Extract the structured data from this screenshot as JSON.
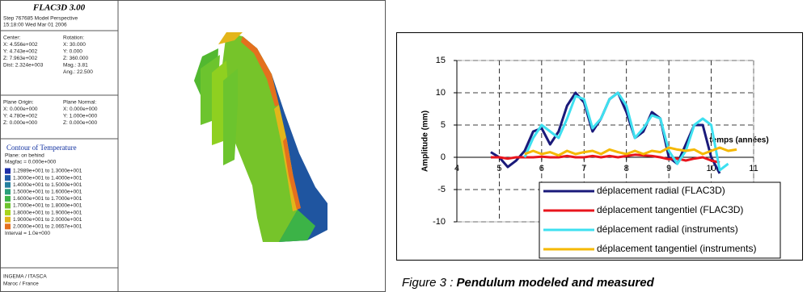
{
  "panel": {
    "title": "FLAC3D 3.00",
    "header": [
      "Step 767685  Model Perspective",
      "15:18:00 Wed Mar 01 2006"
    ],
    "center": [
      "Center:",
      "X: 4.556e+002",
      "Y: 4.743e+002",
      "Z: 7.963e+002",
      "Dist: 2.324e+003"
    ],
    "rotation": [
      "Rotation:",
      "X:  30.000",
      "Y:   0.000",
      "Z: 360.000",
      "Mag.:   3.81",
      "Ang.:  22.500"
    ],
    "plane_origin": [
      "Plane Origin:",
      "X: 0.000e+000",
      "Y: 4.780e+002",
      "Z: 0.000e+000"
    ],
    "plane_normal": [
      "Plane Normal:",
      "X: 0.000e+000",
      "Y: 1.000e+000",
      "Z: 0.000e+000"
    ],
    "contour_title": "Contour of Temperature",
    "contour_info": [
      "Plane: on behind",
      "Magfac =  0.000e+000"
    ],
    "contour_legend": [
      {
        "label": "1.2989e+001 to 1.3000e+001",
        "color": "#1f2fa8"
      },
      {
        "label": "1.3000e+001 to 1.4000e+001",
        "color": "#1f5aa8"
      },
      {
        "label": "1.4000e+001 to 1.5000e+001",
        "color": "#25809f"
      },
      {
        "label": "1.5000e+001 to 1.6000e+001",
        "color": "#2a9f7a"
      },
      {
        "label": "1.6000e+001 to 1.7000e+001",
        "color": "#3cb347"
      },
      {
        "label": "1.7000e+001 to 1.8000e+001",
        "color": "#6cc42e"
      },
      {
        "label": "1.8000e+001 to 1.9000e+001",
        "color": "#a8d41c"
      },
      {
        "label": "1.9000e+001 to 2.0000e+001",
        "color": "#e3b51a"
      },
      {
        "label": "2.0000e+001 to 2.0657e+001",
        "color": "#e4701e"
      }
    ],
    "interval": "Interval =  1.0e+000",
    "footer": [
      "INGEMA / ITASCA",
      "Maroc / France"
    ]
  },
  "chart_data": {
    "type": "line",
    "y_label": "Amplitude (mm)",
    "x_label": "temps (années)",
    "x": [
      4.6,
      4.8,
      5.0,
      5.2,
      5.4,
      5.6,
      5.8,
      6.0,
      6.2,
      6.4,
      6.6,
      6.8,
      7.0,
      7.2,
      7.4,
      7.6,
      7.8,
      8.0,
      8.2,
      8.4,
      8.6,
      8.8,
      9.0,
      9.2,
      9.4,
      9.6,
      9.8,
      10.0,
      10.2,
      10.4,
      10.6
    ],
    "series": [
      {
        "name": "déplacement radial (FLAC3D)",
        "color": "#1a1a7a",
        "values": [
          null,
          0.8,
          0,
          -1.5,
          -0.5,
          1,
          4,
          4.5,
          2,
          4,
          8,
          10,
          8.5,
          4,
          6,
          9,
          10,
          7,
          3,
          4,
          7,
          6,
          0,
          -1,
          2,
          5,
          5,
          0,
          -2.5,
          null,
          null
        ]
      },
      {
        "name": "déplacement tangentiel (FLAC3D)",
        "color": "#e8141c",
        "values": [
          null,
          0,
          0,
          -0.2,
          0,
          0,
          0,
          0.1,
          0,
          0,
          0.2,
          0,
          0,
          0.2,
          0,
          0.2,
          0,
          0.2,
          0.4,
          0.3,
          0.2,
          0,
          -0.3,
          -0.2,
          -0.5,
          -0.2,
          0,
          -0.5,
          -0.8,
          null,
          null
        ]
      },
      {
        "name": "déplacement radial (instruments)",
        "color": "#3ee0f0",
        "values": [
          null,
          null,
          null,
          null,
          null,
          0,
          3,
          5,
          4,
          3,
          6,
          9.5,
          9,
          4.5,
          6,
          9,
          10,
          8,
          3,
          4.5,
          6.5,
          6,
          1,
          -1,
          1,
          5,
          6,
          5,
          -2,
          -1,
          null
        ]
      },
      {
        "name": "déplacement tangentiel (instruments)",
        "color": "#f5b800",
        "values": [
          null,
          null,
          null,
          null,
          null,
          0.5,
          1,
          0.5,
          0.8,
          0.3,
          1,
          0.5,
          0.8,
          1,
          0.5,
          1.2,
          0.8,
          0.5,
          1,
          0.5,
          1,
          0.8,
          1.5,
          1.2,
          1,
          1.2,
          0.5,
          1,
          1.5,
          1,
          1.2
        ]
      }
    ],
    "xlim": [
      4,
      11
    ],
    "xticks": [
      4,
      5,
      6,
      7,
      8,
      9,
      10,
      11
    ],
    "ylim": [
      -10,
      15
    ],
    "yticks": [
      -10,
      -5,
      0,
      5,
      10,
      15
    ],
    "grid": true,
    "caption_prefix": "Figure 3 : ",
    "caption_title": "Pendulum modeled and measured"
  }
}
